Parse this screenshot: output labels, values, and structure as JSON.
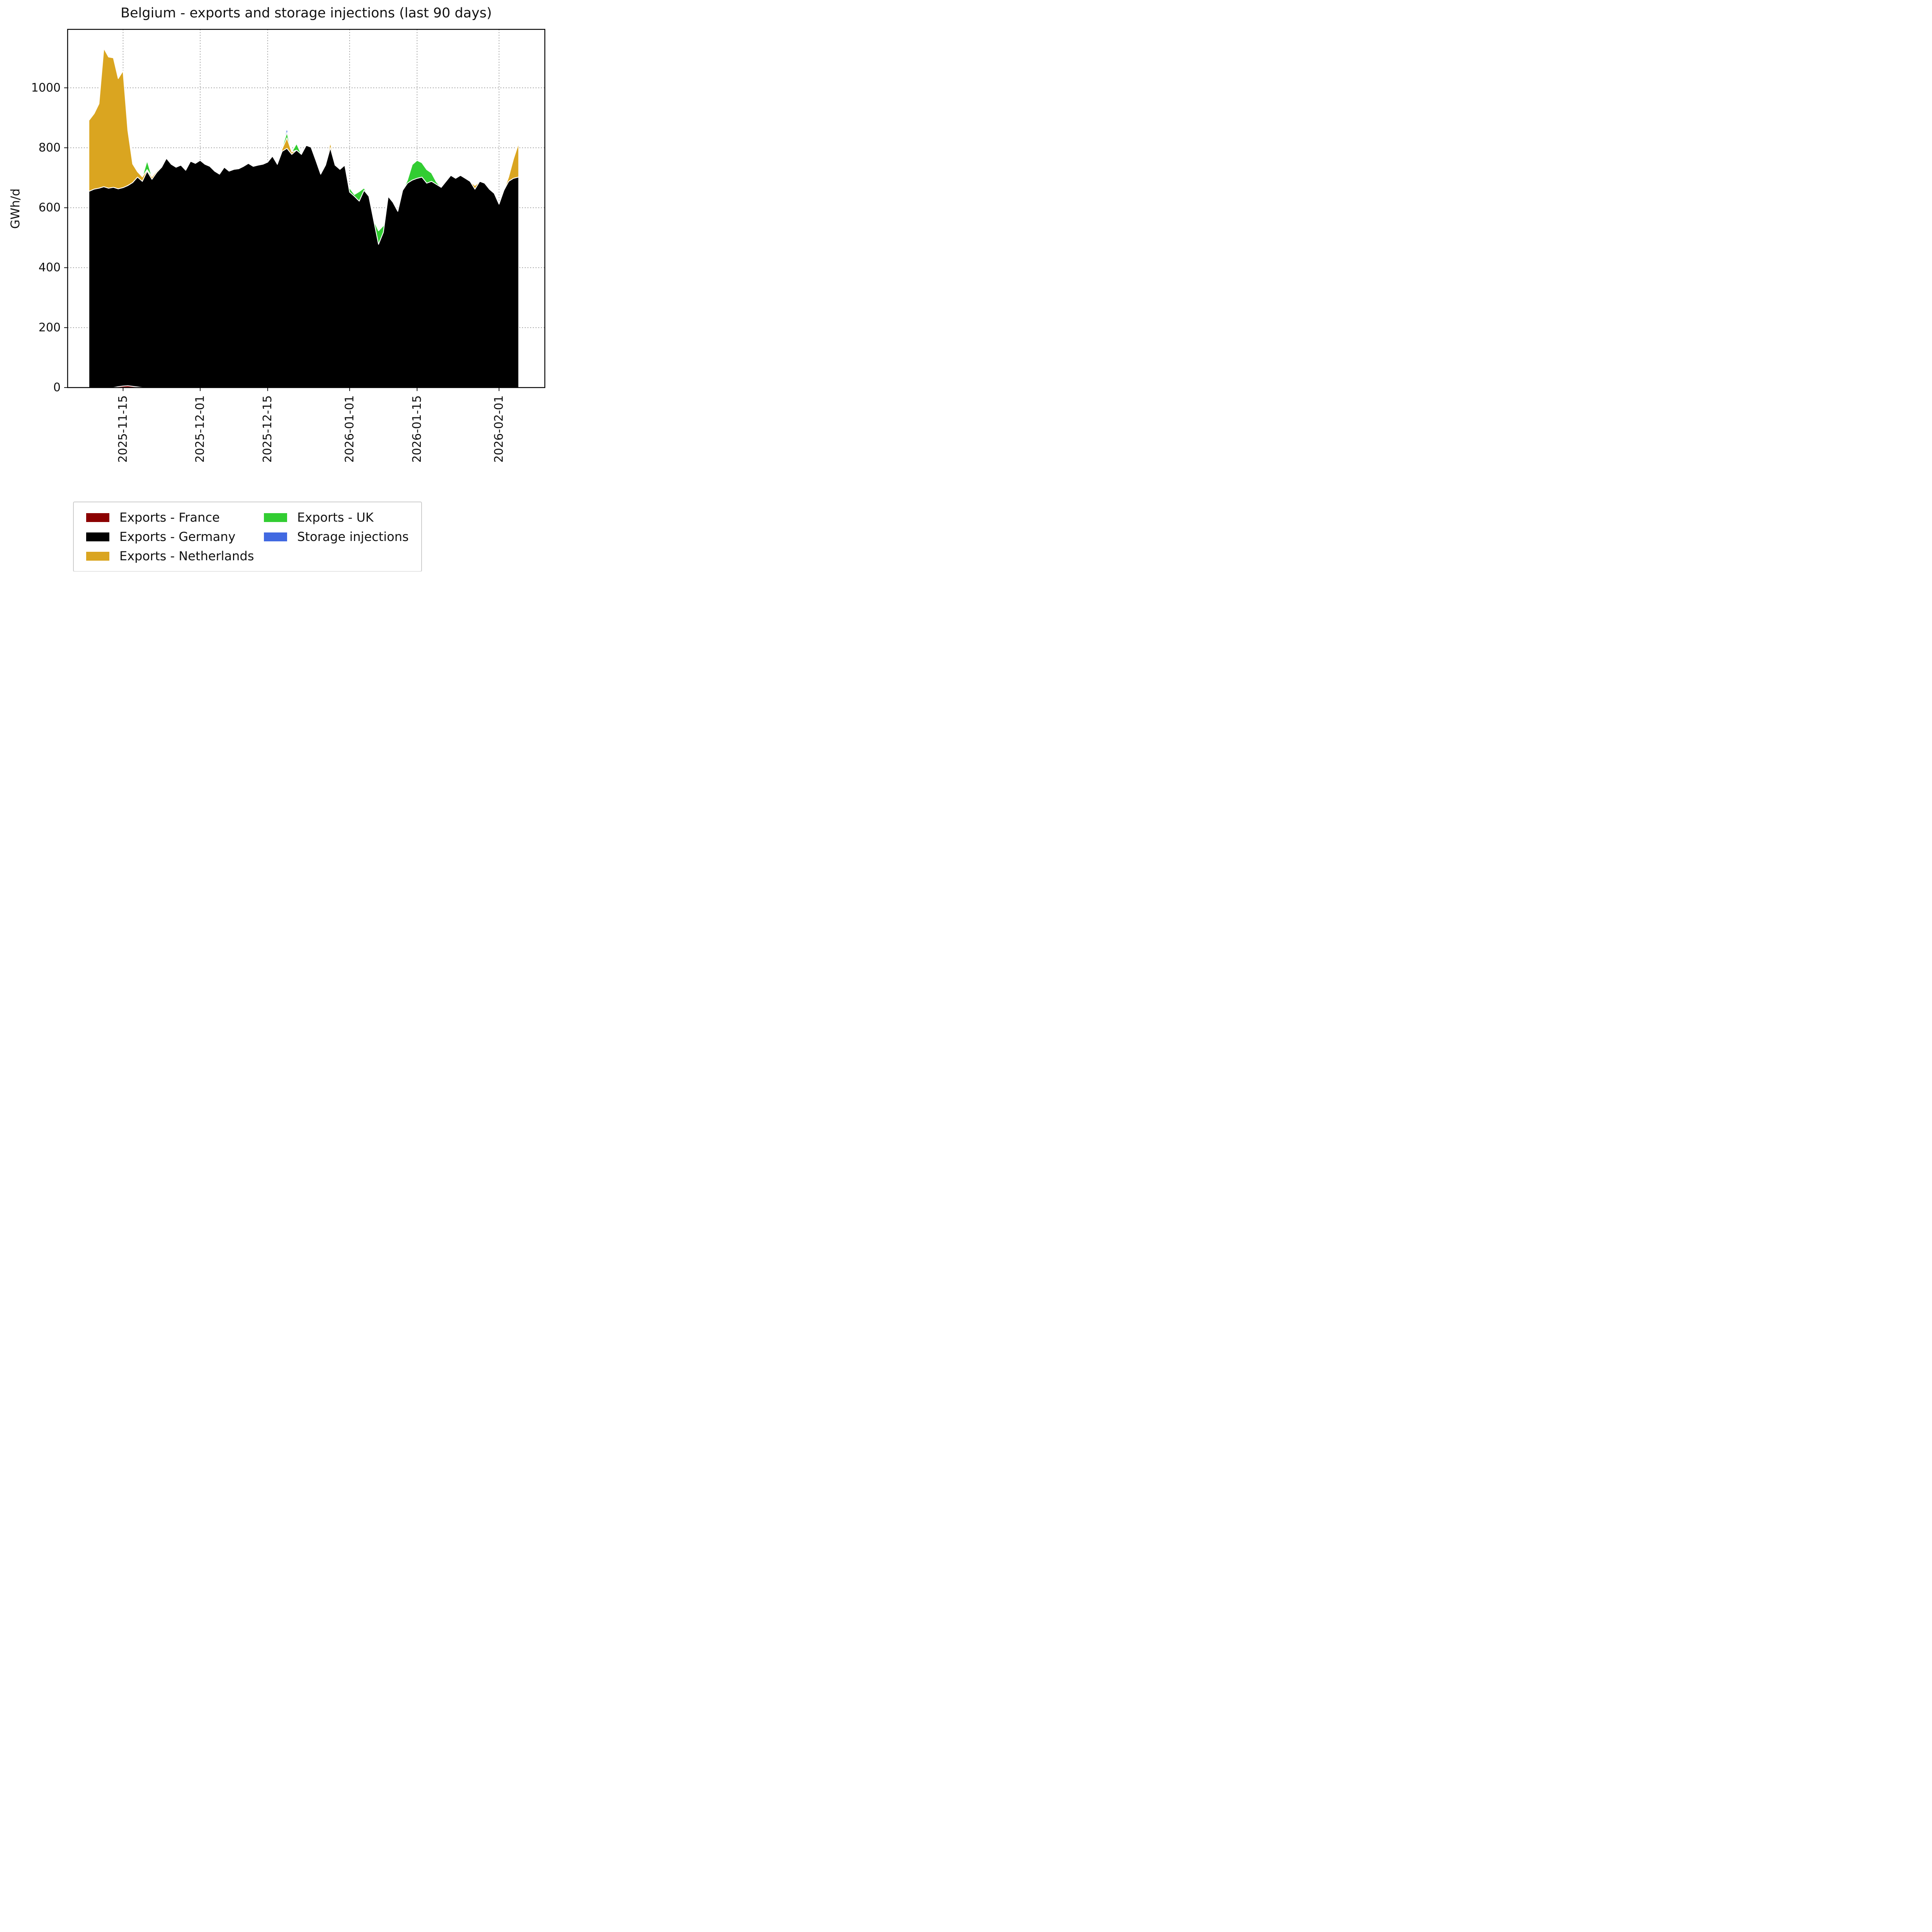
{
  "page": {
    "background": "#ffffff"
  },
  "chart_data": {
    "type": "area",
    "stacked": true,
    "title": "Belgium - exports and storage injections (last 90 days)",
    "ylabel": "GWh/d",
    "xlabel": "",
    "ylim": [
      0,
      1195
    ],
    "grid": "dotted",
    "legend_position": "bottom",
    "x_start_date": "2025-11-08",
    "x_end_date": "2026-02-05",
    "n_points": 90,
    "x_ticks": [
      {
        "day": 7,
        "label": "2025-11-15"
      },
      {
        "day": 23,
        "label": "2025-12-01"
      },
      {
        "day": 37,
        "label": "2025-12-15"
      },
      {
        "day": 54,
        "label": "2026-01-01"
      },
      {
        "day": 68,
        "label": "2026-01-15"
      },
      {
        "day": 85,
        "label": "2026-02-01"
      }
    ],
    "y_ticks": [
      0,
      200,
      400,
      600,
      800,
      1000
    ],
    "series": [
      {
        "name": "Exports - France",
        "color": "#8b0000",
        "values": [
          0,
          0,
          0,
          0,
          0,
          0,
          3,
          5,
          6,
          4,
          2,
          0,
          0,
          0,
          0,
          0,
          0,
          0,
          0,
          0,
          0,
          0,
          0,
          0,
          0,
          0,
          0,
          0,
          0,
          0,
          0,
          0,
          0,
          0,
          0,
          0,
          0,
          0,
          0,
          0,
          0,
          0,
          0,
          0,
          0,
          0,
          0,
          0,
          0,
          0,
          0,
          0,
          0,
          0,
          0,
          0,
          0,
          0,
          0,
          0,
          0,
          0,
          0,
          0,
          0,
          0,
          0,
          0,
          0,
          0,
          0,
          0,
          0,
          0,
          0,
          0,
          0,
          0,
          0,
          0,
          0,
          0,
          0,
          0,
          0,
          0,
          0,
          0,
          0,
          0
        ]
      },
      {
        "name": "Exports - Germany",
        "color": "#000000",
        "values": [
          655,
          662,
          665,
          670,
          665,
          668,
          660,
          662,
          668,
          680,
          700,
          688,
          722,
          695,
          718,
          735,
          765,
          745,
          735,
          742,
          725,
          755,
          748,
          758,
          745,
          738,
          722,
          712,
          735,
          722,
          728,
          730,
          738,
          748,
          738,
          742,
          745,
          752,
          772,
          745,
          788,
          798,
          778,
          792,
          778,
          808,
          802,
          758,
          712,
          742,
          800,
          742,
          728,
          742,
          652,
          638,
          622,
          658,
          638,
          558,
          478,
          518,
          638,
          618,
          588,
          658,
          682,
          692,
          698,
          702,
          682,
          688,
          678,
          668,
          688,
          708,
          698,
          708,
          698,
          688,
          662,
          688,
          682,
          662,
          648,
          612,
          658,
          688,
          698,
          702
        ]
      },
      {
        "name": "Exports - Netherlands",
        "color": "#daa520",
        "values": [
          238,
          252,
          282,
          462,
          438,
          432,
          368,
          390,
          184,
          62,
          18,
          15,
          5,
          8,
          5,
          3,
          0,
          0,
          0,
          0,
          0,
          0,
          0,
          0,
          0,
          0,
          0,
          0,
          0,
          0,
          0,
          0,
          0,
          0,
          0,
          0,
          0,
          0,
          0,
          0,
          8,
          35,
          8,
          0,
          0,
          0,
          0,
          0,
          0,
          0,
          18,
          0,
          0,
          0,
          0,
          0,
          0,
          0,
          0,
          0,
          0,
          0,
          0,
          0,
          0,
          0,
          0,
          0,
          0,
          0,
          0,
          0,
          0,
          0,
          0,
          0,
          0,
          0,
          0,
          0,
          12,
          0,
          0,
          0,
          0,
          0,
          0,
          15,
          65,
          110
        ]
      },
      {
        "name": "Exports - UK",
        "color": "#32cd32",
        "values": [
          0,
          0,
          0,
          0,
          0,
          0,
          0,
          0,
          0,
          0,
          0,
          0,
          30,
          0,
          0,
          0,
          0,
          0,
          0,
          0,
          0,
          0,
          0,
          0,
          0,
          0,
          0,
          0,
          0,
          0,
          0,
          0,
          0,
          0,
          0,
          0,
          0,
          0,
          0,
          0,
          5,
          18,
          0,
          22,
          0,
          0,
          0,
          0,
          0,
          0,
          0,
          0,
          0,
          0,
          14,
          6,
          32,
          8,
          0,
          0,
          45,
          22,
          0,
          0,
          0,
          0,
          10,
          52,
          60,
          48,
          45,
          28,
          8,
          0,
          0,
          0,
          0,
          0,
          0,
          0,
          0,
          0,
          0,
          0,
          0,
          0,
          0,
          0,
          0,
          0
        ]
      },
      {
        "name": "Storage injections",
        "color": "#4169e1",
        "values": [
          0,
          0,
          0,
          0,
          0,
          0,
          0,
          0,
          0,
          0,
          0,
          0,
          0,
          0,
          0,
          0,
          0,
          0,
          0,
          0,
          0,
          0,
          0,
          0,
          0,
          0,
          0,
          0,
          0,
          0,
          0,
          0,
          0,
          0,
          0,
          0,
          0,
          0,
          0,
          0,
          0,
          15,
          0,
          0,
          0,
          0,
          0,
          0,
          0,
          0,
          0,
          0,
          0,
          0,
          0,
          0,
          0,
          0,
          0,
          0,
          0,
          0,
          0,
          0,
          0,
          0,
          0,
          0,
          0,
          0,
          0,
          0,
          0,
          0,
          0,
          0,
          0,
          0,
          0,
          0,
          0,
          0,
          0,
          0,
          0,
          0,
          0,
          0,
          0,
          0
        ]
      }
    ]
  }
}
